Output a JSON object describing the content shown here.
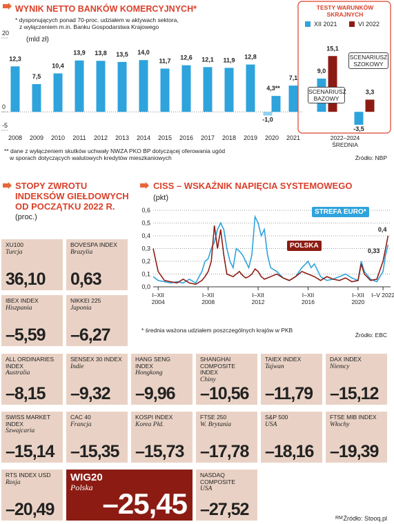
{
  "chart_data": [
    {
      "type": "bar",
      "title": "WYNIK NETTO BANKÓW KOMERCYJNYCH*",
      "subtitle": [
        "* dysponujących ponad 70-proc. udziałem w aktywach sektora,",
        "z wyłączeniem m.in. Banku Gospodarstwa Krajowego"
      ],
      "y_label": "(mld zł)",
      "categories": [
        "2008",
        "2009",
        "2010",
        "2011",
        "2012",
        "2013",
        "2014",
        "2015",
        "2016",
        "2017",
        "2018",
        "2019",
        "2020",
        "2021"
      ],
      "series": [
        {
          "color": "#2ea3dc",
          "values": [
            12.3,
            7.5,
            10.4,
            13.9,
            13.8,
            13.5,
            14.0,
            11.7,
            12.6,
            12.1,
            11.9,
            12.8,
            -1.0,
            7.1
          ],
          "value_labels": [
            "12,3",
            "7,5",
            "10,4",
            "13,9",
            "13,8",
            "13,5",
            "14,0",
            "11,7",
            "12,6",
            "12,1",
            "11,9",
            "12,8",
            "-1,0",
            "7,1"
          ]
        },
        {
          "color": "#2ea3dc",
          "values": [
            null,
            null,
            null,
            null,
            null,
            null,
            null,
            null,
            null,
            null,
            null,
            null,
            4.3,
            null
          ],
          "value_labels": [
            null,
            null,
            null,
            null,
            null,
            null,
            null,
            null,
            null,
            null,
            null,
            null,
            "4,3**",
            null
          ]
        }
      ],
      "ylim": [
        -5,
        20
      ],
      "yticks": [
        -5,
        0,
        20
      ],
      "footnote": [
        "** dane z wyłączeniem skutków uchwały NWZA PKO BP dotyczącej oferowania ugód",
        "w sporach dotyczących walutowych kredytów mieszkaniowych"
      ],
      "source": "Źródło: NBP"
    },
    {
      "type": "bar",
      "title": "TESTY WARUNKÓW SKRAJNYCH",
      "categories": [
        "SCENARIUSZ BAZOWY",
        "SCENARIUSZ SZOKOWY"
      ],
      "x_label": "2022–2024 ŚREDNIA",
      "series": [
        {
          "name": "XII 2021",
          "color": "#2ea3dc",
          "values": [
            9.0,
            -3.5
          ],
          "value_labels": [
            "9,0",
            "-3,5"
          ]
        },
        {
          "name": "VI 2022",
          "color": "#8c1c13",
          "values": [
            15.1,
            3.3
          ],
          "value_labels": [
            "15,1",
            "3,3"
          ]
        }
      ],
      "ylim": [
        -5,
        20
      ]
    },
    {
      "type": "line",
      "title": "CISS – WSKAŹNIK NAPIĘCIA SYSTEMOWEGO",
      "y_label": "(pkt)",
      "x": [
        2003.6,
        2004,
        2004.5,
        2005,
        2005.5,
        2006,
        2006.5,
        2007,
        2007.5,
        2007.75,
        2008,
        2008.25,
        2008.5,
        2008.75,
        2009,
        2009.25,
        2009.5,
        2009.75,
        2010,
        2010.25,
        2010.5,
        2010.75,
        2011,
        2011.25,
        2011.5,
        2011.75,
        2012,
        2012.25,
        2012.5,
        2012.75,
        2013,
        2013.5,
        2014,
        2014.5,
        2015,
        2015.5,
        2016,
        2016.25,
        2016.5,
        2017,
        2017.5,
        2018,
        2018.5,
        2019,
        2019.5,
        2020,
        2020.25,
        2020.5,
        2021,
        2021.5,
        2022,
        2022.2,
        2022.4
      ],
      "series": [
        {
          "name": "STREFA EURO*",
          "color": "#2ea3dc",
          "values": [
            0.08,
            0.05,
            0.04,
            0.03,
            0.04,
            0.03,
            0.06,
            0.03,
            0.12,
            0.2,
            0.22,
            0.3,
            0.35,
            0.45,
            0.5,
            0.45,
            0.3,
            0.2,
            0.15,
            0.3,
            0.28,
            0.25,
            0.2,
            0.15,
            0.25,
            0.55,
            0.5,
            0.4,
            0.45,
            0.25,
            0.15,
            0.12,
            0.07,
            0.05,
            0.08,
            0.15,
            0.2,
            0.15,
            0.18,
            0.08,
            0.05,
            0.06,
            0.08,
            0.1,
            0.07,
            0.05,
            0.2,
            0.12,
            0.06,
            0.04,
            0.12,
            0.25,
            0.33
          ],
          "value_labels": [
            null,
            null,
            null,
            null,
            null,
            null,
            null,
            null,
            null,
            null,
            null,
            null,
            null,
            null,
            null,
            null,
            null,
            null,
            null,
            null,
            null,
            null,
            null,
            null,
            null,
            null,
            null,
            null,
            null,
            null,
            null,
            null,
            null,
            null,
            null,
            null,
            null,
            null,
            null,
            null,
            null,
            null,
            null,
            null,
            null,
            null,
            null,
            null,
            null,
            null,
            null,
            null,
            "0,33"
          ]
        },
        {
          "name": "POLSKA",
          "color": "#8c1c13",
          "values": [
            0.3,
            0.12,
            0.05,
            0.04,
            0.03,
            0.06,
            0.03,
            0.02,
            0.05,
            0.08,
            0.12,
            0.2,
            0.48,
            0.3,
            0.45,
            0.25,
            0.1,
            0.09,
            0.08,
            0.1,
            0.12,
            0.09,
            0.07,
            0.08,
            0.1,
            0.14,
            0.12,
            0.08,
            0.06,
            0.07,
            0.08,
            0.1,
            0.07,
            0.05,
            0.08,
            0.12,
            0.1,
            0.09,
            0.08,
            0.05,
            0.08,
            0.06,
            0.05,
            0.07,
            0.04,
            0.05,
            0.18,
            0.1,
            0.05,
            0.06,
            0.2,
            0.3,
            0.4
          ],
          "value_labels": [
            null,
            null,
            null,
            null,
            null,
            null,
            null,
            null,
            null,
            null,
            null,
            null,
            null,
            null,
            null,
            null,
            null,
            null,
            null,
            null,
            null,
            null,
            null,
            null,
            null,
            null,
            null,
            null,
            null,
            null,
            null,
            null,
            null,
            null,
            null,
            null,
            null,
            null,
            null,
            null,
            null,
            null,
            null,
            null,
            null,
            null,
            null,
            null,
            null,
            null,
            null,
            null,
            "0,4"
          ]
        }
      ],
      "xlim": [
        2003.6,
        2022.6
      ],
      "xticks": [
        {
          "value": 2004,
          "label": "I–XII 2004"
        },
        {
          "value": 2008,
          "label": "I–XII 2008"
        },
        {
          "value": 2012,
          "label": "I–XII 2012"
        },
        {
          "value": 2016,
          "label": "I–XII 2016"
        },
        {
          "value": 2020,
          "label": "I–XII 2020"
        },
        {
          "value": 2022,
          "label": "I–V 2022"
        }
      ],
      "ylim": [
        0,
        0.6
      ],
      "yticks": [
        {
          "value": 0,
          "label": "0,0"
        },
        {
          "value": 0.1,
          "label": "0,1"
        },
        {
          "value": 0.2,
          "label": "0,2"
        },
        {
          "value": 0.3,
          "label": "0,3"
        },
        {
          "value": 0.4,
          "label": "0,4"
        },
        {
          "value": 0.5,
          "label": "0,5"
        },
        {
          "value": 0.6,
          "label": "0,6"
        }
      ],
      "grid": true,
      "footnote": "* średnia ważona udziałem poszczególnych krajów w PKB",
      "source": "Źródło: EBC"
    }
  ],
  "index_returns": {
    "title": [
      "STOPY ZWROTU",
      "INDEKSÓW GIEŁDOWYCH",
      "OD POCZĄTKU 2022 R."
    ],
    "unit": "(proc.)",
    "tiles": [
      {
        "name": "XU100",
        "country": "Turcja",
        "value": "36,10"
      },
      {
        "name": "BOVESPA INDEX",
        "country": "Brazylia",
        "value": "0,63"
      },
      {
        "name": "IBEX INDEX",
        "country": "Hiszpania",
        "value": "–5,59"
      },
      {
        "name": "NIKKEI 225",
        "country": "Japonia",
        "value": "–6,27"
      },
      {
        "name": "ALL ORDINARIES INDEX",
        "country": "Australia",
        "value": "–8,15"
      },
      {
        "name": "SENSEX 30 INDEX",
        "country": "Indie",
        "value": "–9,32"
      },
      {
        "name": "HANG SENG INDEX",
        "country": "Hongkong",
        "value": "–9,96"
      },
      {
        "name": "SHANGHAI COMPOSITE INDEX",
        "country": "Chiny",
        "value": "–10,56"
      },
      {
        "name": "TAIEX INDEX",
        "country": "Tajwan",
        "value": "–11,79"
      },
      {
        "name": "DAX INDEX",
        "country": "Niemcy",
        "value": "–15,12"
      },
      {
        "name": "SWISS MARKET INDEX",
        "country": "Szwajcaria",
        "value": "–15,14"
      },
      {
        "name": "CAC 40",
        "country": "Francja",
        "value": "–15,35"
      },
      {
        "name": "KOSPI INDEX",
        "country": "Korea Płd.",
        "value": "–15,73"
      },
      {
        "name": "FTSE 250",
        "country": "W. Brytania",
        "value": "–17,78"
      },
      {
        "name": "S&P 500",
        "country": "USA",
        "value": "–18,16"
      },
      {
        "name": "FTSE MIB INDEX",
        "country": "Włochy",
        "value": "–19,39"
      },
      {
        "name": "RTS INDEX USD",
        "country": "Rosja",
        "value": "–20,49"
      },
      {
        "name": "WIG20",
        "country": "Polska",
        "value": "–25,45",
        "highlight": true,
        "color": "#8c1c13"
      },
      {
        "name": "NASDAQ COMPOSITE",
        "country": "USA",
        "value": "–27,52"
      }
    ],
    "credit": "RM",
    "source": "Źródło: Stooq.pl"
  }
}
